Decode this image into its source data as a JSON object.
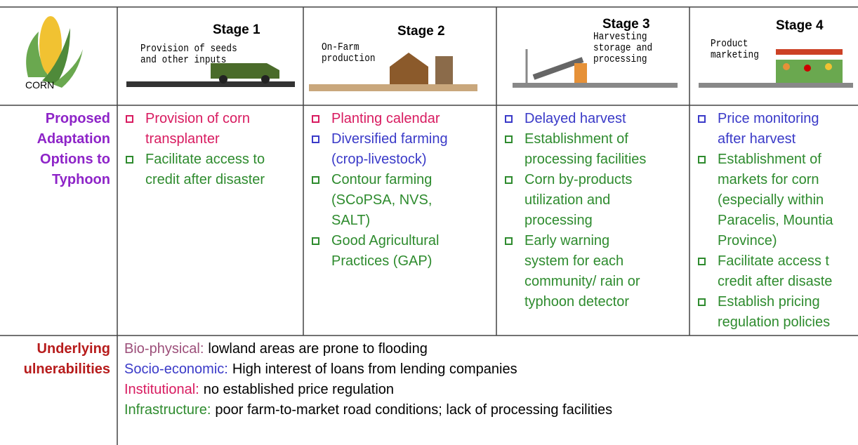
{
  "header": {
    "crop": "CORN",
    "stages": [
      {
        "title": "Stage 1",
        "caption": [
          "Provision of seeds",
          "and other inputs"
        ]
      },
      {
        "title": "Stage 2",
        "caption": [
          "On-Farm",
          "production"
        ]
      },
      {
        "title": "Stage 3",
        "caption": [
          "Harvesting",
          "storage and",
          "processing"
        ]
      },
      {
        "title": "Stage 4",
        "caption": [
          "Product",
          "marketing"
        ]
      }
    ]
  },
  "options": {
    "label": [
      "Proposed",
      "Adaptation",
      "Options to",
      "Typhoon"
    ],
    "columns": [
      [
        {
          "color": "#d81b60",
          "lines": [
            "Provision of corn",
            "transplanter"
          ]
        },
        {
          "color": "#2e8b2e",
          "lines": [
            "Facilitate access to",
            "credit after disaster"
          ]
        }
      ],
      [
        {
          "color": "#d81b60",
          "lines": [
            "Planting calendar"
          ]
        },
        {
          "color": "#3a3ac8",
          "lines": [
            "Diversified farming",
            "(crop-livestock)"
          ]
        },
        {
          "color": "#2e8b2e",
          "lines": [
            "Contour farming",
            "(SCoPSA, NVS,",
            "SALT)"
          ]
        },
        {
          "color": "#2e8b2e",
          "lines": [
            "Good Agricultural",
            "Practices (GAP)"
          ]
        }
      ],
      [
        {
          "color": "#3a3ac8",
          "lines": [
            "Delayed harvest"
          ]
        },
        {
          "color": "#2e8b2e",
          "lines": [
            "Establishment of",
            "processing facilities"
          ]
        },
        {
          "color": "#2e8b2e",
          "lines": [
            "Corn by-products",
            "utilization and",
            "processing"
          ]
        },
        {
          "color": "#2e8b2e",
          "lines": [
            "Early warning",
            "system for each",
            "community/ rain or",
            "typhoon detector"
          ]
        }
      ],
      [
        {
          "color": "#3a3ac8",
          "lines": [
            "Price monitoring",
            "after harvest"
          ]
        },
        {
          "color": "#2e8b2e",
          "lines": [
            "Establishment of",
            "markets for corn",
            "(especially within",
            "Paracelis, Mountia",
            "Province)"
          ]
        },
        {
          "color": "#2e8b2e",
          "lines": [
            "Facilitate access t",
            "credit after disaste"
          ]
        },
        {
          "color": "#2e8b2e",
          "lines": [
            "Establish pricing",
            "regulation policies"
          ]
        }
      ]
    ]
  },
  "vulnerabilities": {
    "label": [
      "Underlying",
      "ulnerabilities"
    ],
    "items": [
      {
        "category": "Bio-physical:",
        "color": "#9c4f7a",
        "text": "lowland areas are prone to flooding"
      },
      {
        "category": "Socio-economic:",
        "color": "#3a3ac8",
        "text": "High interest of loans from lending companies"
      },
      {
        "category": "Institutional:",
        "color": "#d81b60",
        "text": "no established price regulation"
      },
      {
        "category": "Infrastructure:",
        "color": "#2e8b2e",
        "text": "poor farm-to-market road conditions; lack of processing facilities"
      }
    ]
  }
}
